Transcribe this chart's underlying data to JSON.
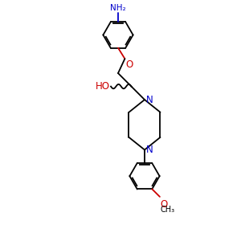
{
  "background_color": "#ffffff",
  "bond_color": "#000000",
  "N_color": "#0000cc",
  "O_color": "#cc0000",
  "text_color": "#000000",
  "figsize": [
    3.0,
    3.0
  ],
  "dpi": 100,
  "xlim": [
    0,
    6
  ],
  "ylim": [
    0,
    10
  ]
}
